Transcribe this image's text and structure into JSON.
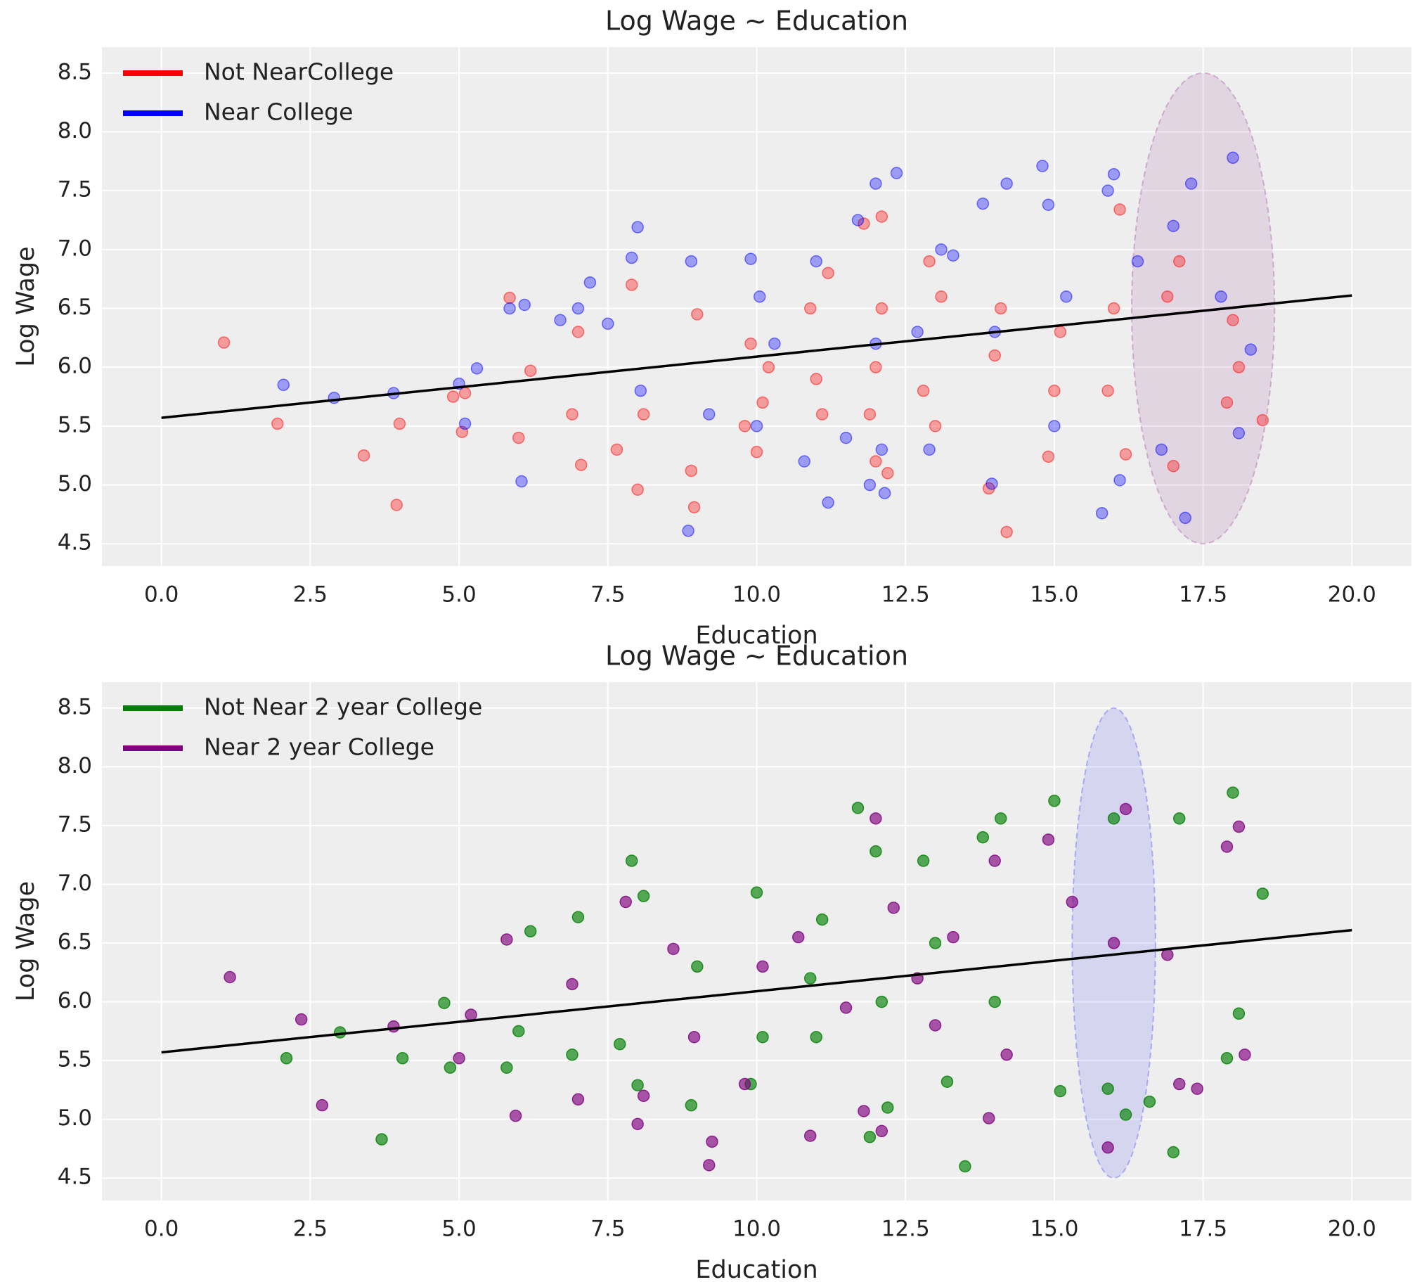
{
  "chart_data": [
    {
      "type": "scatter",
      "title": "Log Wage ~ Education",
      "xlabel": "Education",
      "ylabel": "Log Wage",
      "xlim": [
        -1.0,
        21.0
      ],
      "ylim": [
        4.31,
        8.72
      ],
      "xticks": [
        {
          "value": 0,
          "label": "0.0"
        },
        2.5,
        {
          "value": 5,
          "label": "5.0"
        },
        7.5,
        {
          "value": 10,
          "label": "10.0"
        },
        12.5,
        {
          "value": 15,
          "label": "15.0"
        },
        17.5,
        {
          "value": 20,
          "label": "20.0"
        }
      ],
      "yticks": [
        4.5,
        {
          "value": 5,
          "label": "5.0"
        },
        5.5,
        {
          "value": 6,
          "label": "6.0"
        },
        6.5,
        {
          "value": 7,
          "label": "7.0"
        },
        7.5,
        {
          "value": 8,
          "label": "8.0"
        },
        8.5
      ],
      "grid": true,
      "legend": "upper left",
      "alpha": 0.35,
      "series": [
        {
          "name": "Not NearCollege",
          "color": "#ff0000",
          "x": [
            1.05,
            1.95,
            3.4,
            3.95,
            4.0,
            4.9,
            5.05,
            5.1,
            5.85,
            6.0,
            6.2,
            6.9,
            7.0,
            7.05,
            7.65,
            7.9,
            8.0,
            8.1,
            8.9,
            8.95,
            9.0,
            9.8,
            9.9,
            10.0,
            10.1,
            10.2,
            10.9,
            11.0,
            11.1,
            11.2,
            11.8,
            11.9,
            12.0,
            12.0,
            12.1,
            12.1,
            12.2,
            12.8,
            12.9,
            13.0,
            13.1,
            13.9,
            14.0,
            14.1,
            14.2,
            14.9,
            15.0,
            15.1,
            15.9,
            16.0,
            16.1,
            16.2,
            16.9,
            17.0,
            17.1,
            17.9,
            18.0,
            18.1,
            18.5
          ],
          "values": [
            6.21,
            5.52,
            5.25,
            4.83,
            5.52,
            5.75,
            5.45,
            5.78,
            6.59,
            5.4,
            5.97,
            5.6,
            6.3,
            5.17,
            5.3,
            6.7,
            4.96,
            5.6,
            5.12,
            4.81,
            6.45,
            5.5,
            6.2,
            5.28,
            5.7,
            6.0,
            6.5,
            5.9,
            5.6,
            6.8,
            7.22,
            5.6,
            6.0,
            5.2,
            6.5,
            7.28,
            5.1,
            5.8,
            6.9,
            5.5,
            6.6,
            4.97,
            6.1,
            6.5,
            4.6,
            5.24,
            5.8,
            6.3,
            5.8,
            6.5,
            7.34,
            5.26,
            6.6,
            5.16,
            6.9,
            5.7,
            6.4,
            6.0,
            5.55
          ]
        },
        {
          "name": "Near College",
          "color": "#0000ff",
          "x": [
            2.05,
            2.9,
            3.9,
            5.0,
            5.1,
            5.3,
            5.85,
            6.05,
            6.1,
            6.7,
            7.0,
            7.2,
            7.5,
            7.9,
            8.0,
            8.05,
            8.85,
            8.9,
            9.2,
            9.9,
            10.0,
            10.05,
            10.3,
            10.8,
            11.0,
            11.2,
            11.5,
            11.7,
            11.9,
            12.0,
            12.0,
            12.1,
            12.15,
            12.35,
            12.7,
            12.9,
            13.1,
            13.3,
            13.8,
            13.95,
            14.0,
            14.2,
            14.8,
            14.9,
            15.0,
            15.2,
            15.8,
            15.9,
            16.0,
            16.1,
            16.4,
            16.8,
            17.0,
            17.2,
            17.3,
            17.8,
            18.0,
            18.1,
            18.3
          ],
          "values": [
            5.85,
            5.74,
            5.78,
            5.86,
            5.52,
            5.99,
            6.5,
            5.03,
            6.53,
            6.4,
            6.5,
            6.72,
            6.37,
            6.93,
            7.19,
            5.8,
            4.61,
            6.9,
            5.6,
            6.92,
            5.5,
            6.6,
            6.2,
            5.2,
            6.9,
            4.85,
            5.4,
            7.25,
            5.0,
            7.56,
            6.2,
            5.3,
            4.93,
            7.65,
            6.3,
            5.3,
            7.0,
            6.95,
            7.39,
            5.01,
            6.3,
            7.56,
            7.71,
            7.38,
            5.5,
            6.6,
            4.76,
            7.5,
            7.64,
            5.04,
            6.9,
            5.3,
            7.2,
            4.72,
            7.56,
            6.6,
            7.78,
            5.44,
            6.15
          ]
        }
      ],
      "fit": {
        "x": [
          0,
          20
        ],
        "values": [
          5.57,
          6.61
        ],
        "color": "#000000"
      },
      "ellipse": {
        "cx": 17.5,
        "cy": 6.5,
        "width": 2.4,
        "height": 4.0,
        "color": "#800080"
      }
    },
    {
      "type": "scatter",
      "title": "Log Wage ~ Education",
      "xlabel": "Education",
      "ylabel": "Log Wage",
      "xlim": [
        -1.0,
        21.0
      ],
      "ylim": [
        4.31,
        8.72
      ],
      "xticks": [
        {
          "value": 0,
          "label": "0.0"
        },
        2.5,
        {
          "value": 5,
          "label": "5.0"
        },
        7.5,
        {
          "value": 10,
          "label": "10.0"
        },
        12.5,
        {
          "value": 15,
          "label": "15.0"
        },
        17.5,
        {
          "value": 20,
          "label": "20.0"
        }
      ],
      "yticks": [
        4.5,
        {
          "value": 5,
          "label": "5.0"
        },
        5.5,
        {
          "value": 6,
          "label": "6.0"
        },
        6.5,
        {
          "value": 7,
          "label": "7.0"
        },
        7.5,
        {
          "value": 8,
          "label": "8.0"
        },
        8.5
      ],
      "grid": true,
      "legend": "upper left",
      "alpha": 0.65,
      "series": [
        {
          "name": "Not Near 2 year College",
          "color": "#008000",
          "x": [
            2.1,
            3.0,
            3.7,
            4.05,
            4.75,
            4.85,
            5.8,
            6.0,
            6.2,
            6.9,
            7.0,
            7.7,
            7.9,
            8.0,
            8.1,
            8.9,
            9.0,
            9.9,
            10.0,
            10.1,
            10.9,
            11.0,
            11.1,
            11.7,
            11.9,
            12.0,
            12.1,
            12.2,
            12.8,
            13.0,
            13.2,
            13.5,
            13.8,
            14.0,
            14.1,
            15.0,
            15.1,
            15.9,
            16.0,
            16.2,
            16.6,
            17.0,
            17.1,
            17.9,
            18.0,
            18.1,
            18.5
          ],
          "values": [
            5.52,
            5.74,
            4.83,
            5.52,
            5.99,
            5.44,
            5.44,
            5.75,
            6.6,
            5.55,
            6.72,
            5.64,
            7.2,
            5.29,
            6.9,
            5.12,
            6.3,
            5.3,
            6.93,
            5.7,
            6.2,
            5.7,
            6.7,
            7.65,
            4.85,
            7.28,
            6.0,
            5.1,
            7.2,
            6.5,
            5.32,
            4.6,
            7.4,
            6.0,
            7.56,
            7.71,
            5.24,
            5.26,
            7.56,
            5.04,
            5.15,
            4.72,
            7.56,
            5.52,
            7.78,
            5.9,
            6.92
          ]
        },
        {
          "name": "Near 2 year College",
          "color": "#800080",
          "x": [
            1.15,
            2.35,
            2.7,
            3.9,
            5.0,
            5.2,
            5.8,
            5.95,
            6.9,
            7.0,
            7.8,
            8.0,
            8.1,
            8.6,
            8.95,
            9.2,
            9.25,
            9.8,
            10.1,
            10.7,
            10.9,
            11.5,
            11.8,
            12.0,
            12.1,
            12.3,
            12.7,
            13.0,
            13.3,
            13.9,
            14.0,
            14.2,
            14.9,
            15.3,
            15.9,
            16.0,
            16.2,
            16.9,
            17.1,
            17.4,
            17.9,
            18.1,
            18.2
          ],
          "values": [
            6.21,
            5.85,
            5.12,
            5.79,
            5.52,
            5.89,
            6.53,
            5.03,
            6.15,
            5.17,
            6.85,
            4.96,
            5.2,
            6.45,
            5.7,
            4.61,
            4.81,
            5.3,
            6.3,
            6.55,
            4.86,
            5.95,
            5.07,
            7.56,
            4.9,
            6.8,
            6.2,
            5.8,
            6.55,
            5.01,
            7.2,
            5.55,
            7.38,
            6.85,
            4.76,
            6.5,
            7.64,
            6.4,
            5.3,
            5.26,
            7.32,
            7.49,
            5.55
          ]
        }
      ],
      "fit": {
        "x": [
          0,
          20
        ],
        "values": [
          5.57,
          6.61
        ],
        "color": "#000000"
      },
      "ellipse": {
        "cx": 16.0,
        "cy": 6.5,
        "width": 1.4,
        "height": 4.0,
        "color": "#0000ff"
      }
    }
  ]
}
